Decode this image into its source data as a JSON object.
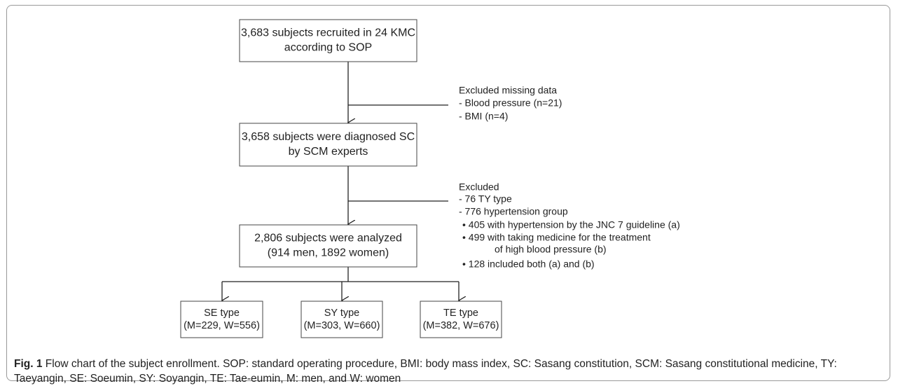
{
  "nodes": [
    {
      "lines": [
        "3,683 subjects recruited in 24 KMC",
        "according to SOP"
      ]
    },
    {
      "lines": [
        "3,658 subjects were diagnosed SC",
        "by SCM experts"
      ]
    },
    {
      "lines": [
        "2,806 subjects were analyzed",
        "(914 men, 1892 women)"
      ]
    },
    {
      "lines": [
        "SE type",
        "(M=229, W=556)"
      ]
    },
    {
      "lines": [
        "SY type",
        "(M=303, W=660)"
      ]
    },
    {
      "lines": [
        "TE type",
        "(M=382, W=676)"
      ]
    }
  ],
  "exclusions": [
    {
      "lines": [
        "Excluded missing data",
        "- Blood pressure (n=21)",
        "- BMI (n=4)"
      ]
    },
    {
      "lines": [
        "Excluded",
        "- 76 TY type",
        "- 776 hypertension group",
        "• 405 with hypertension by the JNC 7 guideline (a)",
        "• 499 with taking medicine for the treatment",
        "of high blood pressure (b)",
        "• 128 included both (a) and (b)"
      ]
    }
  ],
  "caption": {
    "label": "Fig. 1",
    "text": "Flow chart of the subject enrollment. SOP: standard operating procedure, BMI: body mass index, SC: Sasang constitution, SCM: Sasang constitutional medicine, TY: Taeyangin, SE: Soeumin, SY: Soyangin, TE: Tae-eumin, M: men, and W: women"
  }
}
